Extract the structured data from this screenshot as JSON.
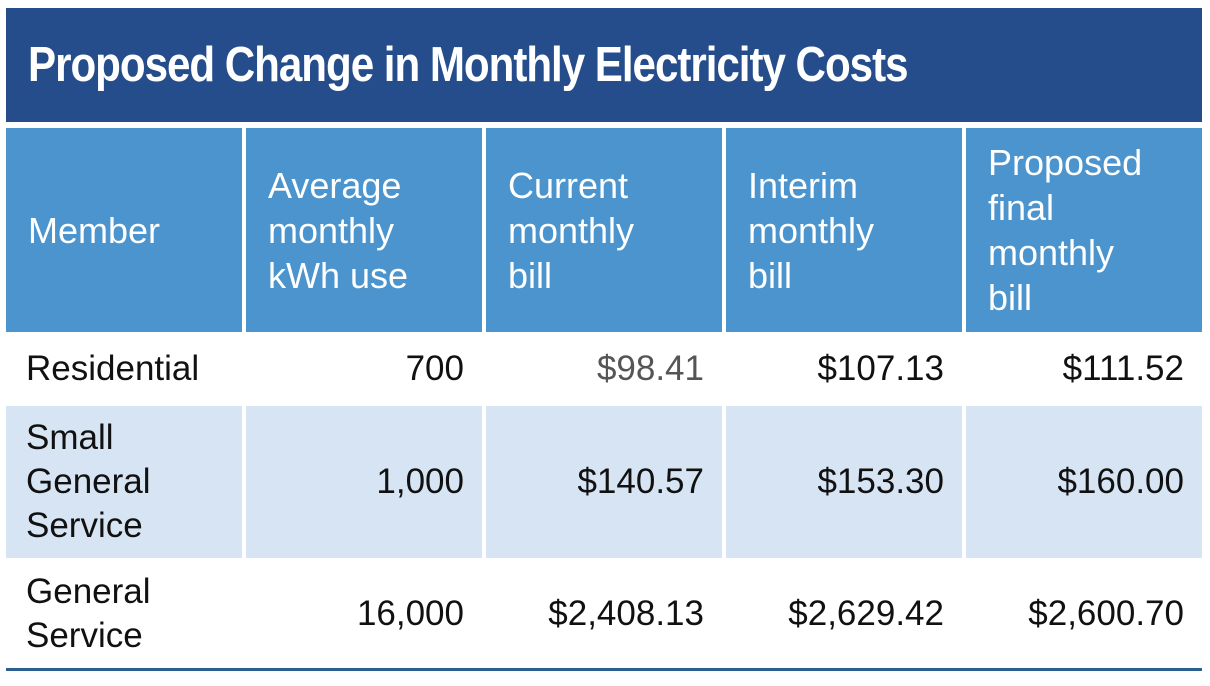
{
  "title": "Proposed Change in Monthly Electricity Costs",
  "colors": {
    "title_bg": "#254d8c",
    "header_bg": "#4b94cd",
    "band_bg": "#d6e4f3",
    "rule": "#2a5f8f"
  },
  "table": {
    "headers": [
      "Member",
      "Average\nmonthly\nkWh use",
      "Current\nmonthly\nbill",
      "Interim\nmonthly\nbill",
      "Proposed\nfinal\nmonthly\nbill"
    ],
    "rows": [
      {
        "member": "Residential",
        "kwh": "700",
        "current": "$98.41",
        "interim": "$107.13",
        "proposed": "$111.52"
      },
      {
        "member": "Small\nGeneral\nService",
        "kwh": "1,000",
        "current": "$140.57",
        "interim": "$153.30",
        "proposed": "$160.00"
      },
      {
        "member": "General\nService",
        "kwh": "16,000",
        "current": "$2,408.13",
        "interim": "$2,629.42",
        "proposed": "$2,600.70"
      }
    ]
  }
}
